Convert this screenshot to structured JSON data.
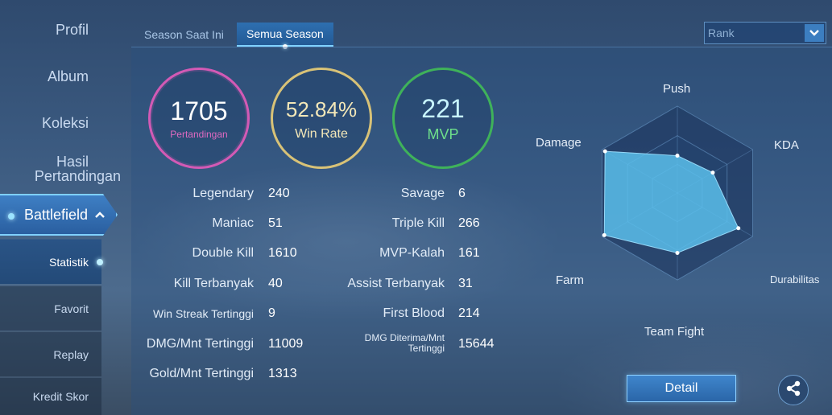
{
  "sidebar": {
    "profil": "Profil",
    "album": "Album",
    "koleksi": "Koleksi",
    "hasil_line1": "Hasil",
    "hasil_line2": "Pertandingan",
    "battlefield": "Battlefield",
    "battlefield_chevron": "chevron-up-icon",
    "sub": {
      "statistik": "Statistik",
      "favorit": "Favorit",
      "replay": "Replay",
      "kredit": "Kredit Skor"
    }
  },
  "tabs": {
    "season_saat_ini": "Season Saat Ini",
    "semua_season": "Semua Season"
  },
  "rank_select": {
    "placeholder": "Rank",
    "caret_icon": "chevron-down-icon"
  },
  "summary": {
    "matches": {
      "value": "1705",
      "label": "Pertandingan"
    },
    "winrate": {
      "value": "52.84%",
      "label": "Win Rate"
    },
    "mvp": {
      "value": "221",
      "label": "MVP"
    }
  },
  "stats_left": [
    {
      "label": "Legendary",
      "value": "240"
    },
    {
      "label": "Maniac",
      "value": "51"
    },
    {
      "label": "Double Kill",
      "value": "1610"
    },
    {
      "label": "Kill Terbanyak",
      "value": "40"
    },
    {
      "label": "Win Streak Tertinggi",
      "value": "9"
    },
    {
      "label": "DMG/Mnt Tertinggi",
      "value": "11009"
    },
    {
      "label": "Gold/Mnt Tertinggi",
      "value": "1313"
    }
  ],
  "stats_right": [
    {
      "label": "Savage",
      "value": "6"
    },
    {
      "label": "Triple Kill",
      "value": "266"
    },
    {
      "label": "MVP-Kalah",
      "value": "161"
    },
    {
      "label": "Assist Terbanyak",
      "value": "31"
    },
    {
      "label": "First Blood",
      "value": "214"
    },
    {
      "label_line1": "DMG Diterima/Mnt",
      "label_line2": "Tertinggi",
      "value": "15644"
    }
  ],
  "radar": {
    "labels": {
      "push": "Push",
      "kda": "KDA",
      "durabilitas": "Durabilitas",
      "team_fight": "Team Fight",
      "farm": "Farm",
      "damage": "Damage"
    },
    "values": {
      "Push": 0.43,
      "KDA": 0.47,
      "Durabilitas": 0.81,
      "Team Fight": 0.69,
      "Farm": 0.97,
      "Damage": 0.96
    }
  },
  "buttons": {
    "detail": "Detail",
    "share_icon": "share-icon"
  },
  "colors": {
    "matches_ring": "#d35ab5",
    "winrate_ring": "#d8c277",
    "mvp_ring": "#3fb25a",
    "accent": "#7fd0ff"
  }
}
